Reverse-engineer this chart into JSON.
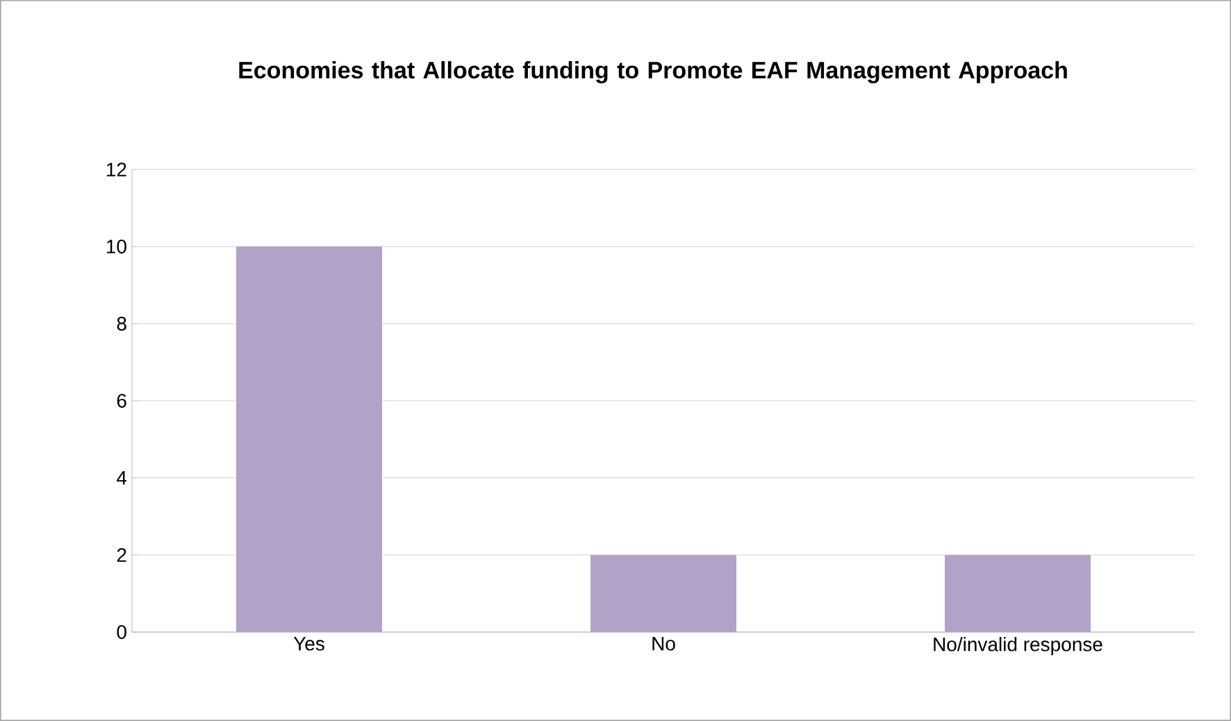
{
  "chart_data": {
    "type": "bar",
    "title": "Economies that Allocate funding to Promote EAF Management Approach",
    "categories": [
      "Yes",
      "No",
      "No/invalid response"
    ],
    "values": [
      10,
      2,
      2
    ],
    "color": "#b3a2c7",
    "ylim": [
      0,
      12
    ],
    "yticks": [
      0,
      2,
      4,
      6,
      8,
      10,
      12
    ],
    "grid": "y"
  }
}
